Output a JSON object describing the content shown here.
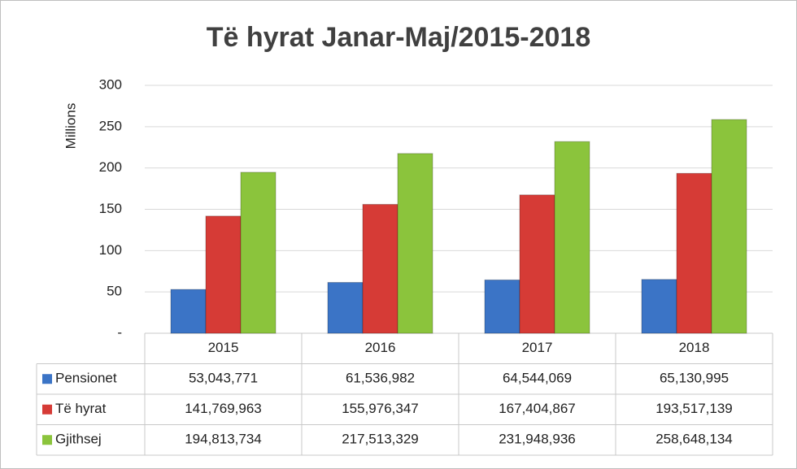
{
  "chart_data": {
    "type": "bar",
    "title": "Të hyrat Janar-Maj/2015-2018",
    "y_label": "Millions",
    "categories": [
      "2015",
      "2016",
      "2017",
      "2018"
    ],
    "series": [
      {
        "name": "Pensionet",
        "color": "#3b74c6",
        "values": [
          53.043771,
          61.536982,
          64.544069,
          65.130995
        ],
        "value_labels": [
          "53,043,771",
          "61,536,982",
          "64,544,069",
          "65,130,995"
        ]
      },
      {
        "name": "Të hyrat",
        "color": "#d63b36",
        "values": [
          141.769963,
          155.976347,
          167.404867,
          193.517139
        ],
        "value_labels": [
          "141,769,963",
          "155,976,347",
          "167,404,867",
          "193,517,139"
        ]
      },
      {
        "name": "Gjithsej",
        "color": "#8bc43c",
        "values": [
          194.813734,
          217.513329,
          231.948936,
          258.648134
        ],
        "value_labels": [
          "194,813,734",
          "217,513,329",
          "231,948,936",
          "258,648,134"
        ]
      }
    ],
    "ylim": [
      0,
      300
    ],
    "yticks": [
      {
        "value": 0,
        "label": "-"
      },
      50,
      100,
      150,
      200,
      250,
      300
    ],
    "grid": true
  }
}
